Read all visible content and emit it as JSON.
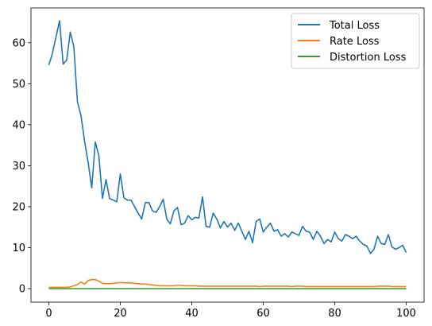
{
  "chart_data": {
    "type": "line",
    "title": "",
    "xlabel": "",
    "ylabel": "",
    "xlim": [
      -5,
      105
    ],
    "ylim": [
      -3.3,
      68.5
    ],
    "xticks": [
      0,
      20,
      40,
      60,
      80,
      100
    ],
    "yticks": [
      0,
      10,
      20,
      30,
      40,
      50,
      60
    ],
    "grid": false,
    "legend_placement": "top-right",
    "series": [
      {
        "name": "Total Loss",
        "color": "#1f77b4",
        "values": [
          54.6,
          57.4,
          61.4,
          65.4,
          54.8,
          55.8,
          62.6,
          59.0,
          45.6,
          42.2,
          36.0,
          30.8,
          24.6,
          35.8,
          32.4,
          22.0,
          26.6,
          22.0,
          21.6,
          21.2,
          28.0,
          22.2,
          21.6,
          21.6,
          20.0,
          18.4,
          17.0,
          21.0,
          21.0,
          19.0,
          18.6,
          20.0,
          21.8,
          17.0,
          15.8,
          19.0,
          19.8,
          15.6,
          16.0,
          17.8,
          16.8,
          17.4,
          17.2,
          22.4,
          15.2,
          15.0,
          18.4,
          17.0,
          14.8,
          16.4,
          15.0,
          16.0,
          14.2,
          16.0,
          14.0,
          12.0,
          14.0,
          11.2,
          16.4,
          17.0,
          13.8,
          15.0,
          16.0,
          14.0,
          14.4,
          12.8,
          13.4,
          12.6,
          13.8,
          13.4,
          13.0,
          15.2,
          14.0,
          13.8,
          12.0,
          14.0,
          12.8,
          11.0,
          12.0,
          11.4,
          13.8,
          12.2,
          11.6,
          13.2,
          12.8,
          12.2,
          12.8,
          11.6,
          10.8,
          10.4,
          8.6,
          9.6,
          12.8,
          11.0,
          10.8,
          13.2,
          10.2,
          9.6,
          10.0,
          10.6,
          8.8
        ]
      },
      {
        "name": "Rate Loss",
        "color": "#ff7f0e",
        "values": [
          0.3,
          0.3,
          0.3,
          0.3,
          0.3,
          0.3,
          0.4,
          0.7,
          1.0,
          1.6,
          1.1,
          2.0,
          2.2,
          2.2,
          1.8,
          1.3,
          1.2,
          1.2,
          1.3,
          1.4,
          1.5,
          1.4,
          1.4,
          1.4,
          1.3,
          1.2,
          1.1,
          1.1,
          1.0,
          0.9,
          0.8,
          0.7,
          0.7,
          0.7,
          0.7,
          0.7,
          0.8,
          0.8,
          0.7,
          0.7,
          0.7,
          0.7,
          0.6,
          0.6,
          0.6,
          0.6,
          0.6,
          0.6,
          0.6,
          0.6,
          0.6,
          0.6,
          0.6,
          0.6,
          0.6,
          0.6,
          0.6,
          0.6,
          0.6,
          0.5,
          0.6,
          0.6,
          0.6,
          0.6,
          0.6,
          0.6,
          0.6,
          0.6,
          0.5,
          0.6,
          0.6,
          0.6,
          0.5,
          0.5,
          0.5,
          0.5,
          0.5,
          0.5,
          0.5,
          0.5,
          0.5,
          0.5,
          0.5,
          0.5,
          0.5,
          0.5,
          0.5,
          0.5,
          0.5,
          0.5,
          0.5,
          0.5,
          0.6,
          0.6,
          0.6,
          0.6,
          0.5,
          0.5,
          0.5,
          0.5,
          0.5
        ]
      },
      {
        "name": "Distortion Loss",
        "color": "#2ca02c",
        "values": [
          0.0,
          0.0,
          0.0,
          0.0,
          0.0,
          0.0,
          0.0,
          0.0,
          0.0,
          0.0,
          0.0,
          0.0,
          0.0,
          0.0,
          0.0,
          0.0,
          0.0,
          0.0,
          0.0,
          0.0,
          0.0,
          0.0,
          0.0,
          0.0,
          0.0,
          0.0,
          0.0,
          0.0,
          0.0,
          0.0,
          0.0,
          0.0,
          0.0,
          0.0,
          0.0,
          0.0,
          0.0,
          0.0,
          0.0,
          0.0,
          0.0,
          0.0,
          0.0,
          0.0,
          0.0,
          0.0,
          0.0,
          0.0,
          0.0,
          0.0,
          0.0,
          0.0,
          0.0,
          0.0,
          0.0,
          0.0,
          0.0,
          0.0,
          0.0,
          0.0,
          0.0,
          0.0,
          0.0,
          0.0,
          0.0,
          0.0,
          0.0,
          0.0,
          0.0,
          0.0,
          0.0,
          0.0,
          0.0,
          0.0,
          0.0,
          0.0,
          0.0,
          0.0,
          0.0,
          0.0,
          0.0,
          0.0,
          0.0,
          0.0,
          0.0,
          0.0,
          0.0,
          0.0,
          0.0,
          0.0,
          0.0,
          0.0,
          0.0,
          0.0,
          0.0,
          0.0,
          0.0,
          0.0,
          0.0,
          0.0,
          0.0
        ]
      }
    ]
  }
}
